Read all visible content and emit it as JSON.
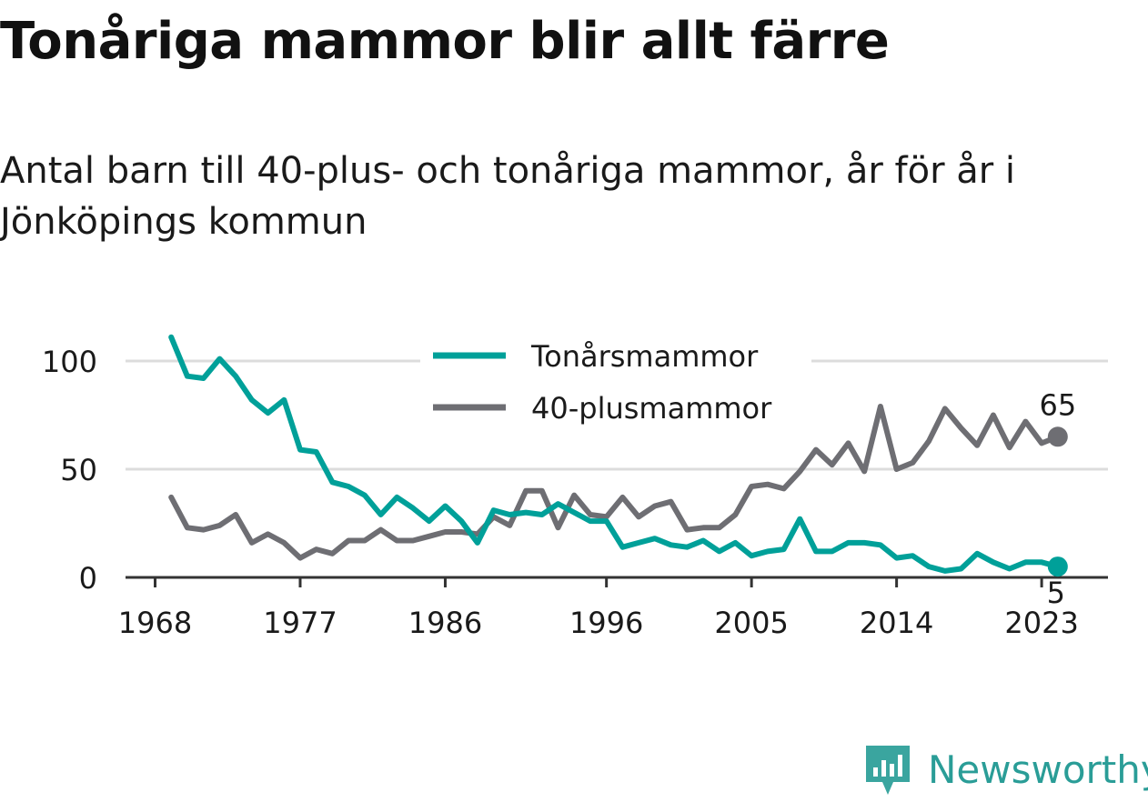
{
  "title": "Tonåriga mammor blir allt färre",
  "subtitle": "Antal barn till 40-plus- och tonåriga mammor, år för år i Jönköpings kommun",
  "brand": {
    "name": "Newsworthy",
    "logo_icon": "bar-chart-speech-bubble-icon"
  },
  "colors": {
    "teen": "#00a099",
    "plus40": "#6e6e73",
    "grid": "#dcdcdc",
    "axis": "#333333",
    "text": "#1a1a1a"
  },
  "chart_data": {
    "type": "line",
    "x": [
      1969,
      1970,
      1971,
      1972,
      1973,
      1974,
      1975,
      1976,
      1977,
      1978,
      1979,
      1980,
      1981,
      1982,
      1983,
      1984,
      1985,
      1986,
      1987,
      1988,
      1989,
      1990,
      1991,
      1992,
      1993,
      1994,
      1995,
      1996,
      1997,
      1998,
      1999,
      2000,
      2001,
      2002,
      2003,
      2004,
      2005,
      2006,
      2007,
      2008,
      2009,
      2010,
      2011,
      2012,
      2013,
      2014,
      2015,
      2016,
      2017,
      2018,
      2019,
      2020,
      2021,
      2022,
      2023,
      2024
    ],
    "series": [
      {
        "name": "Tonårsmammor",
        "color": "#00a099",
        "values": [
          111,
          93,
          92,
          101,
          93,
          82,
          76,
          82,
          59,
          58,
          44,
          42,
          38,
          29,
          37,
          32,
          26,
          33,
          26,
          16,
          31,
          29,
          30,
          29,
          34,
          30,
          26,
          26,
          14,
          16,
          18,
          15,
          14,
          17,
          12,
          16,
          10,
          12,
          13,
          27,
          12,
          12,
          16,
          16,
          15,
          9,
          10,
          5,
          3,
          4,
          11,
          7,
          4,
          7,
          7,
          5
        ]
      },
      {
        "name": "40-plusmammor",
        "color": "#6e6e73",
        "values": [
          37,
          23,
          22,
          24,
          29,
          16,
          20,
          16,
          9,
          13,
          11,
          17,
          17,
          22,
          17,
          17,
          19,
          21,
          21,
          20,
          28,
          24,
          40,
          40,
          23,
          38,
          29,
          28,
          37,
          28,
          33,
          35,
          22,
          23,
          23,
          29,
          42,
          43,
          41,
          49,
          59,
          52,
          62,
          49,
          79,
          50,
          53,
          63,
          78,
          69,
          61,
          75,
          60,
          72,
          62,
          65
        ]
      }
    ],
    "xticks": [
      "1968",
      "1977",
      "1986",
      "1996",
      "2005",
      "2014",
      "2023"
    ],
    "xtick_years": [
      1968,
      1977,
      1986,
      1996,
      2005,
      2014,
      2023
    ],
    "yticks": [
      0,
      50,
      100
    ],
    "xlim": [
      1968,
      2025
    ],
    "ylim": [
      0,
      115
    ],
    "end_labels": [
      "5",
      "65"
    ],
    "grid": true,
    "legend": "top-center"
  }
}
